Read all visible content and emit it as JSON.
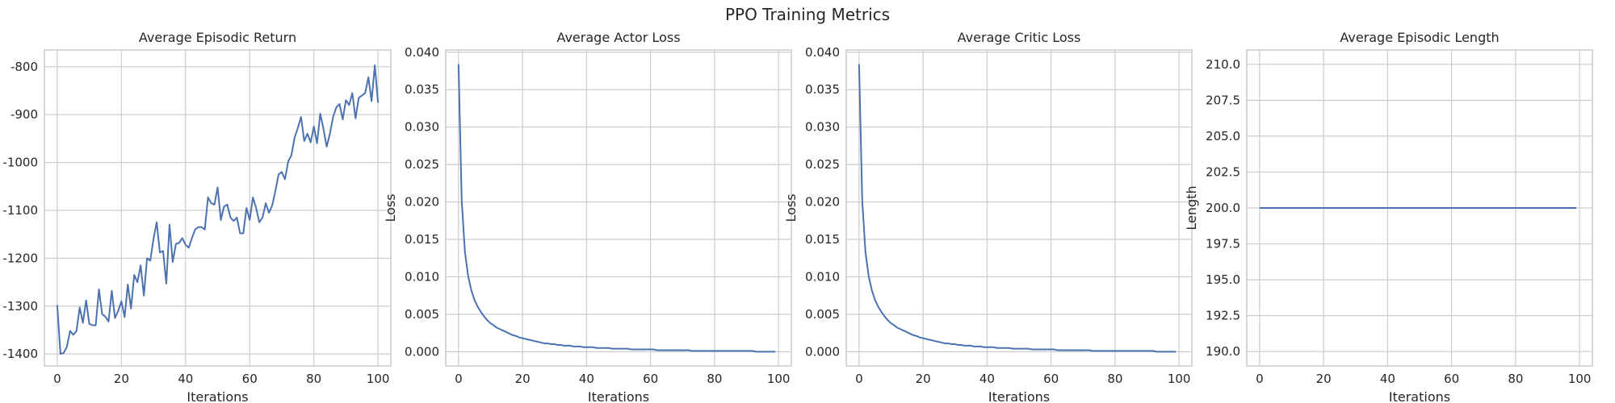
{
  "figure": {
    "title": "PPO Training Metrics"
  },
  "style": {
    "line_color": "#4c72b0",
    "grid_color": "#cccccc",
    "spine_color": "#cccccc",
    "text_color": "#262626",
    "background": "#ffffff"
  },
  "chart_data": [
    {
      "type": "line",
      "title": "Average Episodic Return",
      "xlabel": "Iterations",
      "ylabel": "",
      "xlim": [
        -4,
        104
      ],
      "ylim": [
        -1425,
        -765
      ],
      "xticks": [
        0,
        20,
        40,
        60,
        80,
        100
      ],
      "yticks": [
        -1400,
        -1300,
        -1200,
        -1100,
        -1000,
        -900,
        -800
      ],
      "ytick_labels": [
        "-1400",
        "-1300",
        "-1200",
        "-1100",
        "-1000",
        "-900",
        "-800"
      ],
      "grid": true,
      "series": [
        {
          "values": [
            -1298,
            -1400,
            -1398,
            -1385,
            -1352,
            -1360,
            -1352,
            -1303,
            -1335,
            -1288,
            -1337,
            -1340,
            -1340,
            -1265,
            -1317,
            -1322,
            -1332,
            -1268,
            -1325,
            -1310,
            -1290,
            -1323,
            -1255,
            -1305,
            -1235,
            -1250,
            -1215,
            -1278,
            -1200,
            -1205,
            -1160,
            -1125,
            -1188,
            -1185,
            -1253,
            -1130,
            -1208,
            -1170,
            -1168,
            -1158,
            -1172,
            -1178,
            -1158,
            -1140,
            -1135,
            -1135,
            -1140,
            -1073,
            -1085,
            -1088,
            -1052,
            -1120,
            -1092,
            -1088,
            -1115,
            -1122,
            -1115,
            -1148,
            -1148,
            -1095,
            -1120,
            -1073,
            -1095,
            -1125,
            -1115,
            -1085,
            -1105,
            -1090,
            -1060,
            -1025,
            -1020,
            -1035,
            -998,
            -985,
            -948,
            -928,
            -905,
            -955,
            -940,
            -958,
            -925,
            -960,
            -898,
            -930,
            -967,
            -940,
            -905,
            -885,
            -878,
            -910,
            -870,
            -880,
            -855,
            -908,
            -865,
            -860,
            -855,
            -822,
            -872,
            -797,
            -875
          ]
        }
      ]
    },
    {
      "type": "line",
      "title": "Average Actor Loss",
      "xlabel": "Iterations",
      "ylabel": "Loss",
      "xlim": [
        -4,
        104
      ],
      "ylim": [
        -0.0019,
        0.0403
      ],
      "xticks": [
        0,
        20,
        40,
        60,
        80,
        100
      ],
      "yticks": [
        0.0,
        0.005,
        0.01,
        0.015,
        0.02,
        0.025,
        0.03,
        0.035,
        0.04
      ],
      "ytick_labels": [
        "0.000",
        "0.005",
        "0.010",
        "0.015",
        "0.020",
        "0.025",
        "0.030",
        "0.035",
        "0.040"
      ],
      "grid": true,
      "series": [
        {
          "values": [
            0.0384,
            0.0201,
            0.0133,
            0.0101,
            0.0082,
            0.0069,
            0.006,
            0.0053,
            0.0047,
            0.0042,
            0.0038,
            0.0035,
            0.0032,
            0.003,
            0.0028,
            0.0026,
            0.0024,
            0.0022,
            0.0021,
            0.0019,
            0.0018,
            0.0017,
            0.0016,
            0.0015,
            0.0014,
            0.0013,
            0.0012,
            0.0011,
            0.0011,
            0.001,
            0.001,
            0.0009,
            0.0009,
            0.0008,
            0.0008,
            0.0008,
            0.0007,
            0.0007,
            0.0007,
            0.0006,
            0.0006,
            0.0006,
            0.0006,
            0.0005,
            0.0005,
            0.0005,
            0.0005,
            0.0005,
            0.0004,
            0.0004,
            0.0004,
            0.0004,
            0.0004,
            0.0004,
            0.0003,
            0.0003,
            0.0003,
            0.0003,
            0.0003,
            0.0003,
            0.0003,
            0.0003,
            0.0002,
            0.0002,
            0.0002,
            0.0002,
            0.0002,
            0.0002,
            0.0002,
            0.0002,
            0.0002,
            0.0002,
            0.0002,
            0.0001,
            0.0001,
            0.0001,
            0.0001,
            0.0001,
            0.0001,
            0.0001,
            0.0001,
            0.0001,
            0.0001,
            0.0001,
            0.0001,
            0.0001,
            0.0001,
            0.0001,
            0.0001,
            0.0001,
            0.0001,
            0.0001,
            0.0001,
            0.0,
            0.0,
            0.0,
            0.0,
            0.0,
            0.0,
            0.0
          ]
        }
      ]
    },
    {
      "type": "line",
      "title": "Average Critic Loss",
      "xlabel": "Iterations",
      "ylabel": "Loss",
      "xlim": [
        -4,
        104
      ],
      "ylim": [
        -0.0019,
        0.0403
      ],
      "xticks": [
        0,
        20,
        40,
        60,
        80,
        100
      ],
      "yticks": [
        0.0,
        0.005,
        0.01,
        0.015,
        0.02,
        0.025,
        0.03,
        0.035,
        0.04
      ],
      "ytick_labels": [
        "0.000",
        "0.005",
        "0.010",
        "0.015",
        "0.020",
        "0.025",
        "0.030",
        "0.035",
        "0.040"
      ],
      "grid": true,
      "series": [
        {
          "values": [
            0.0384,
            0.0201,
            0.0133,
            0.0101,
            0.0082,
            0.0069,
            0.006,
            0.0053,
            0.0047,
            0.0042,
            0.0038,
            0.0035,
            0.0032,
            0.003,
            0.0028,
            0.0026,
            0.0024,
            0.0022,
            0.0021,
            0.0019,
            0.0018,
            0.0017,
            0.0016,
            0.0015,
            0.0014,
            0.0013,
            0.0012,
            0.0011,
            0.0011,
            0.001,
            0.001,
            0.0009,
            0.0009,
            0.0008,
            0.0008,
            0.0008,
            0.0007,
            0.0007,
            0.0007,
            0.0006,
            0.0006,
            0.0006,
            0.0006,
            0.0005,
            0.0005,
            0.0005,
            0.0005,
            0.0005,
            0.0004,
            0.0004,
            0.0004,
            0.0004,
            0.0004,
            0.0004,
            0.0003,
            0.0003,
            0.0003,
            0.0003,
            0.0003,
            0.0003,
            0.0003,
            0.0003,
            0.0002,
            0.0002,
            0.0002,
            0.0002,
            0.0002,
            0.0002,
            0.0002,
            0.0002,
            0.0002,
            0.0002,
            0.0002,
            0.0001,
            0.0001,
            0.0001,
            0.0001,
            0.0001,
            0.0001,
            0.0001,
            0.0001,
            0.0001,
            0.0001,
            0.0001,
            0.0001,
            0.0001,
            0.0001,
            0.0001,
            0.0001,
            0.0001,
            0.0001,
            0.0001,
            0.0001,
            0.0,
            0.0,
            0.0,
            0.0,
            0.0,
            0.0,
            0.0
          ]
        }
      ]
    },
    {
      "type": "line",
      "title": "Average Episodic Length",
      "xlabel": "Iterations",
      "ylabel": "Length",
      "xlim": [
        -4,
        104
      ],
      "ylim": [
        189,
        211
      ],
      "xticks": [
        0,
        20,
        40,
        60,
        80,
        100
      ],
      "yticks": [
        190.0,
        192.5,
        195.0,
        197.5,
        200.0,
        202.5,
        205.0,
        207.5,
        210.0
      ],
      "ytick_labels": [
        "190.0",
        "192.5",
        "195.0",
        "197.5",
        "200.0",
        "202.5",
        "205.0",
        "207.5",
        "210.0"
      ],
      "grid": true,
      "series": [
        {
          "values": [
            200,
            200,
            200,
            200,
            200,
            200,
            200,
            200,
            200,
            200,
            200,
            200,
            200,
            200,
            200,
            200,
            200,
            200,
            200,
            200,
            200,
            200,
            200,
            200,
            200,
            200,
            200,
            200,
            200,
            200,
            200,
            200,
            200,
            200,
            200,
            200,
            200,
            200,
            200,
            200,
            200,
            200,
            200,
            200,
            200,
            200,
            200,
            200,
            200,
            200,
            200,
            200,
            200,
            200,
            200,
            200,
            200,
            200,
            200,
            200,
            200,
            200,
            200,
            200,
            200,
            200,
            200,
            200,
            200,
            200,
            200,
            200,
            200,
            200,
            200,
            200,
            200,
            200,
            200,
            200,
            200,
            200,
            200,
            200,
            200,
            200,
            200,
            200,
            200,
            200,
            200,
            200,
            200,
            200,
            200,
            200,
            200,
            200,
            200,
            200
          ]
        }
      ]
    }
  ]
}
